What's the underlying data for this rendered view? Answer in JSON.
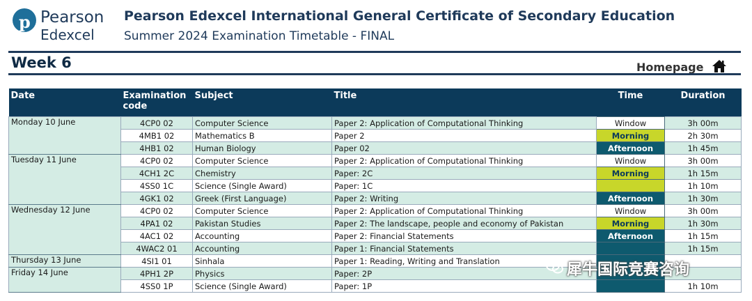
{
  "logo": {
    "name": "Pearson",
    "sub": "Edexcel"
  },
  "header": {
    "title": "Pearson Edexcel International General Certificate of Secondary Education",
    "subtitle": "Summer 2024 Examination Timetable - FINAL"
  },
  "week_label": "Week 6",
  "homepage_label": "Homepage",
  "columns": {
    "date": "Date",
    "code_line1": "Examination",
    "code_line2": "code",
    "subject": "Subject",
    "title": "Title",
    "time": "Time",
    "duration": "Duration"
  },
  "days": [
    {
      "date": "Monday 10 June",
      "rows": [
        {
          "code": "4CP0 02",
          "subject": "Computer Science",
          "title": "Paper 2: Application of Computational Thinking",
          "time": "Window",
          "duration": "3h 00m"
        },
        {
          "code": "4MB1 02",
          "subject": "Mathematics B",
          "title": "Paper 2",
          "time": "Morning",
          "duration": "2h 30m"
        },
        {
          "code": "4HB1 02",
          "subject": "Human Biology",
          "title": "Paper 02",
          "time": "Afternoon",
          "duration": "1h 45m"
        }
      ]
    },
    {
      "date": "Tuesday 11 June",
      "rows": [
        {
          "code": "4CP0 02",
          "subject": "Computer Science",
          "title": "Paper 2: Application of Computational Thinking",
          "time": "Window",
          "duration": "3h 00m"
        },
        {
          "code": "4CH1 2C",
          "subject": "Chemistry",
          "title": "Paper: 2C",
          "time": "Morning",
          "duration": "1h 15m"
        },
        {
          "code": "4SS0 1C",
          "subject": "Science (Single Award)",
          "title": "Paper: 1C",
          "time": "",
          "duration": "1h 10m"
        },
        {
          "code": "4GK1 02",
          "subject": "Greek (First Language)",
          "title": "Paper 2: Writing",
          "time": "Afternoon",
          "duration": "1h 30m"
        }
      ]
    },
    {
      "date": "Wednesday 12 June",
      "rows": [
        {
          "code": "4CP0 02",
          "subject": "Computer Science",
          "title": "Paper 2: Application of Computational Thinking",
          "time": "Window",
          "duration": "3h 00m"
        },
        {
          "code": "4PA1 02",
          "subject": "Pakistan Studies",
          "title": "Paper 2: The landscape, people and economy of Pakistan",
          "time": "Morning",
          "duration": "1h 30m"
        },
        {
          "code": "4AC1 02",
          "subject": "Accounting",
          "title": "Paper 2: Financial Statements",
          "time": "Afternoon",
          "duration": "1h 15m"
        },
        {
          "code": "4WAC2 01",
          "subject": "Accounting",
          "title": "Paper 1: Financial Statements",
          "time": "",
          "duration": "1h 15m"
        }
      ]
    },
    {
      "date": "Thursday 13 June",
      "rows": [
        {
          "code": "4SI1 01",
          "subject": "Sinhala",
          "title": "Paper 1: Reading, Writing and Translation",
          "time": "",
          "duration": ""
        }
      ]
    },
    {
      "date": "Friday 14 June",
      "rows": [
        {
          "code": "4PH1 2P",
          "subject": "Physics",
          "title": "Paper: 2P",
          "time": "",
          "duration": ""
        },
        {
          "code": "4SS0 1P",
          "subject": "Science (Single Award)",
          "title": "Paper: 1P",
          "time": "",
          "duration": "1h 10m"
        }
      ]
    }
  ],
  "watermark": "犀牛国际竞赛咨询"
}
